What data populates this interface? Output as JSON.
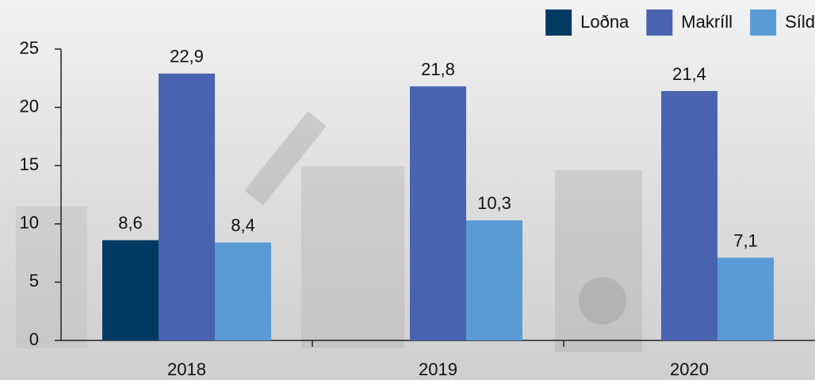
{
  "chart_data": {
    "type": "bar",
    "categories": [
      "2018",
      "2019",
      "2020"
    ],
    "series": [
      {
        "name": "Loðna",
        "color": "#003a63",
        "values": [
          8.6,
          null,
          null
        ],
        "value_labels": [
          "8,6",
          null,
          null
        ]
      },
      {
        "name": "Makríll",
        "color": "#4a63b0",
        "values": [
          22.9,
          21.8,
          21.4
        ],
        "value_labels": [
          "22,9",
          "21,8",
          "21,4"
        ]
      },
      {
        "name": "Síld",
        "color": "#5b9bd5",
        "values": [
          8.4,
          10.3,
          7.1
        ],
        "value_labels": [
          "8,4",
          "10,3",
          "7,1"
        ]
      }
    ],
    "ylim": [
      0,
      25
    ],
    "yticks": [
      0,
      5,
      10,
      15,
      20,
      25
    ],
    "legend": "top-right"
  }
}
